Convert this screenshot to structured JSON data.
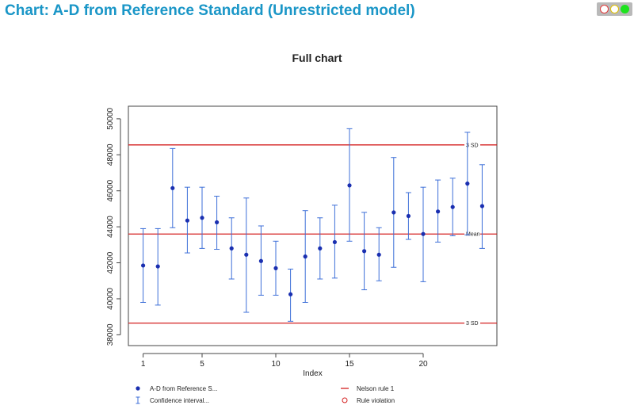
{
  "page": {
    "title": "Chart: A-D from Reference Standard (Unrestricted model)"
  },
  "chart_data": {
    "type": "scatter",
    "title": "Full chart",
    "xlabel": "Index",
    "ylabel": "",
    "xlim": [
      0,
      25
    ],
    "ylim": [
      37400,
      50700
    ],
    "x_ticks": [
      1,
      5,
      10,
      15,
      20
    ],
    "y_ticks": [
      38000,
      40000,
      42000,
      44000,
      46000,
      48000,
      50000
    ],
    "grid": false,
    "series": [
      {
        "name": "A-D from Reference S...",
        "color": "#1a2fb0",
        "x": [
          1,
          2,
          3,
          4,
          5,
          6,
          7,
          8,
          9,
          10,
          11,
          12,
          13,
          14,
          15,
          16,
          17,
          18,
          19,
          20,
          21,
          22,
          23,
          24
        ],
        "values": [
          41850,
          41800,
          46150,
          44350,
          44500,
          44250,
          42800,
          42450,
          42100,
          41700,
          40250,
          42350,
          42800,
          43150,
          46300,
          42650,
          42450,
          44800,
          44600,
          43600,
          44850,
          45100,
          46400,
          45150
        ],
        "ci_low": [
          39800,
          39650,
          43950,
          42550,
          42800,
          42750,
          41100,
          39250,
          40200,
          40200,
          38750,
          39800,
          41100,
          41150,
          43200,
          40500,
          41000,
          41750,
          43300,
          40950,
          43150,
          43500,
          43550,
          42800
        ],
        "ci_high": [
          43900,
          43900,
          48350,
          46200,
          46200,
          45700,
          44500,
          45600,
          44050,
          43200,
          41650,
          44900,
          44500,
          45200,
          49450,
          44800,
          43950,
          47850,
          45900,
          46200,
          46600,
          46700,
          49250,
          47450
        ]
      }
    ],
    "reference_lines": [
      {
        "label": "3 SD",
        "value": 48550,
        "color": "#d42020"
      },
      {
        "label": "Mean",
        "value": 43600,
        "color": "#d42020"
      },
      {
        "label": "3 SD",
        "value": 38650,
        "color": "#d42020"
      }
    ],
    "legend": {
      "placement": "bottom",
      "items": [
        {
          "label": "A-D from Reference S...",
          "symbol": "dot",
          "color": "#1a2fb0"
        },
        {
          "label": "Nelson rule 1",
          "symbol": "line",
          "color": "#d42020"
        },
        {
          "label": "Confidence interval...",
          "symbol": "errorbar",
          "color": "#3d6fd8"
        },
        {
          "label": "Rule violation",
          "symbol": "open-circle",
          "color": "#d42020"
        }
      ]
    }
  }
}
